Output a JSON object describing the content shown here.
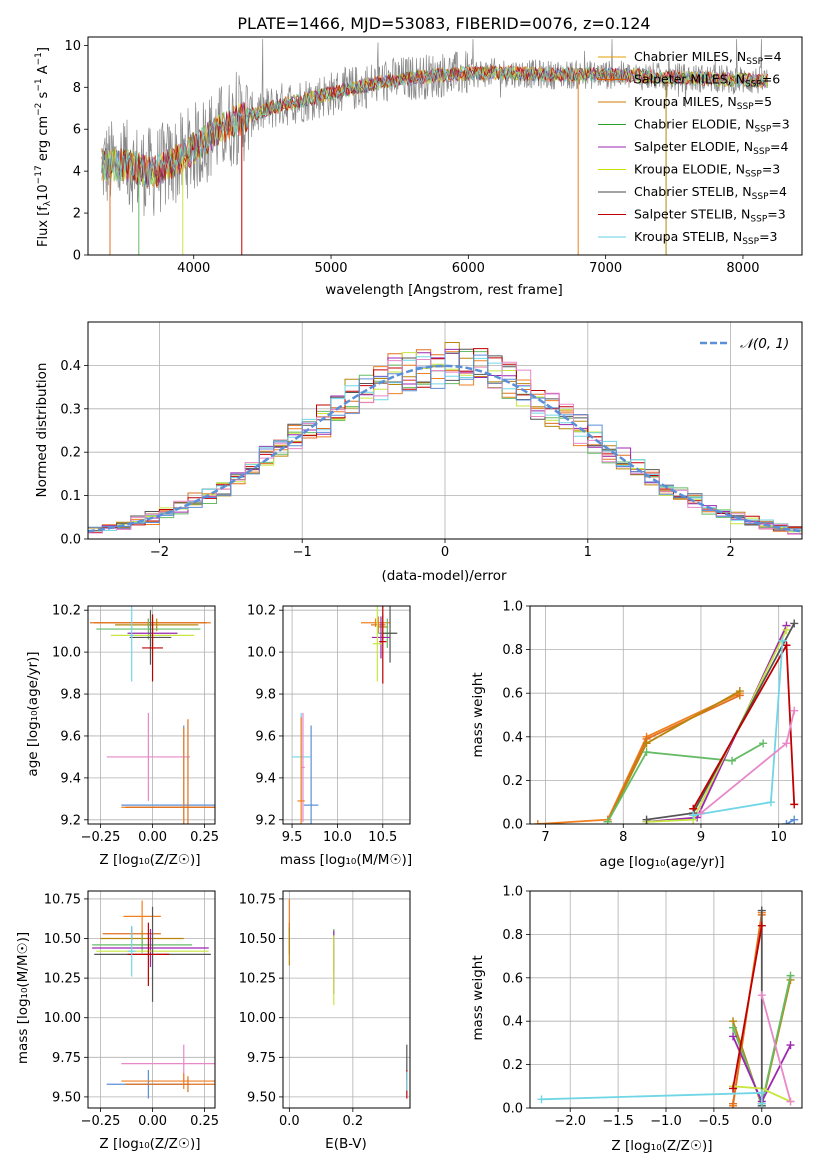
{
  "figure_title": "PLATE=1466, MJD=53083, FIBERID=0076, z=0.124",
  "legend_entries": [
    {
      "label": "Chabrier MILES, N",
      "sub": "SSP",
      "suffix": "=4",
      "color": "#e69f00"
    },
    {
      "label": "Salpeter MILES, N",
      "sub": "SSP",
      "suffix": "=6",
      "color": "#d55e00"
    },
    {
      "label": "Kroupa MILES, N",
      "sub": "SSP",
      "suffix": "=5",
      "color": "#cc7a00"
    },
    {
      "label": "Chabrier ELODIE, N",
      "sub": "SSP",
      "suffix": "=3",
      "color": "#2ca02c"
    },
    {
      "label": "Salpeter ELODIE, N",
      "sub": "SSP",
      "suffix": "=4",
      "color": "#9c27b0"
    },
    {
      "label": "Kroupa ELODIE, N",
      "sub": "SSP",
      "suffix": "=3",
      "color": "#c8e000"
    },
    {
      "label": "Chabrier STELIB, N",
      "sub": "SSP",
      "suffix": "=4",
      "color": "#444444"
    },
    {
      "label": "Salpeter STELIB, N",
      "sub": "SSP",
      "suffix": "=3",
      "color": "#c00000"
    },
    {
      "label": "Kroupa STELIB, N",
      "sub": "SSP",
      "suffix": "=3",
      "color": "#66d0e6"
    }
  ],
  "series_colors": [
    "#f08020",
    "#e07020",
    "#b8860b",
    "#66bb66",
    "#9c27b0",
    "#c8e640",
    "#555555",
    "#c00000",
    "#70d6e6",
    "#e888c8",
    "#5b8fd8"
  ],
  "chart_data": [
    {
      "type": "line",
      "xlabel": "wavelength [Angstrom, rest frame]",
      "ylabel": "Flux [f_λ 10^-17 erg cm^-2 s^-1 A^-1]",
      "ylabel_parts": {
        "main": "Flux [f",
        "lambda": "λ",
        "mid": "10",
        "e1": "−17",
        "unit1": " erg cm",
        "e2": "−2",
        "unit2": " s",
        "e3": "−1",
        "unit3": " A",
        "e4": "−1",
        "end": "]"
      },
      "xlim": [
        3230,
        8430
      ],
      "ylim": [
        0,
        10.4
      ],
      "xticks": [
        4000,
        5000,
        6000,
        7000,
        8000
      ],
      "yticks": [
        0,
        2,
        4,
        6,
        8,
        10
      ],
      "continuum": [
        [
          3330,
          4.3
        ],
        [
          3500,
          4.3
        ],
        [
          3700,
          3.9
        ],
        [
          3900,
          4.6
        ],
        [
          4100,
          5.6
        ],
        [
          4300,
          6.4
        ],
        [
          4600,
          7.1
        ],
        [
          5000,
          7.7
        ],
        [
          5400,
          8.3
        ],
        [
          5800,
          8.6
        ],
        [
          6200,
          8.7
        ],
        [
          6600,
          8.6
        ],
        [
          7000,
          8.6
        ],
        [
          7400,
          8.5
        ],
        [
          7800,
          8.4
        ],
        [
          8150,
          8.3
        ]
      ],
      "noisy_range": [
        3330,
        8180
      ],
      "drop_lines": [
        3390,
        3600,
        3920,
        4350,
        6800,
        7440
      ]
    },
    {
      "type": "histogram",
      "xlabel": "(data-model)/error",
      "ylabel": "Normed distribution",
      "xlim": [
        -2.5,
        2.5
      ],
      "ylim": [
        0,
        0.5
      ],
      "xticks": [
        -2,
        -1,
        0,
        1,
        2
      ],
      "yticks": [
        0.0,
        0.1,
        0.2,
        0.3,
        0.4
      ],
      "bin_width": 0.1,
      "legend": "𝒩(0, 1)",
      "gaussian": {
        "mu": 0,
        "sigma": 1
      }
    },
    {
      "type": "scatter",
      "xlabel": "Z [log₁₀(Z/Z☉)]",
      "ylabel": "age  [log₁₀(age/yr)]",
      "xlim": [
        -0.31,
        0.3
      ],
      "ylim": [
        9.18,
        10.22
      ],
      "xticks": [
        -0.25,
        0.0,
        0.25
      ],
      "yticks": [
        9.2,
        9.4,
        9.6,
        9.8,
        10.0,
        10.2
      ],
      "points": [
        {
          "x": 0.0,
          "y": 10.14,
          "xe": 0.28,
          "ye": 0.02
        },
        {
          "x": -0.02,
          "y": 10.14,
          "xe": 0.28,
          "ye": 0.02
        },
        {
          "x": 0.02,
          "y": 10.13,
          "xe": 0.2,
          "ye": 0.03
        },
        {
          "x": -0.02,
          "y": 10.11,
          "xe": 0.25,
          "ye": 0.05
        },
        {
          "x": 0.0,
          "y": 10.09,
          "xe": 0.12,
          "ye": 0.06
        },
        {
          "x": 0.0,
          "y": 10.08,
          "xe": 0.2,
          "ye": 0.1
        },
        {
          "x": -0.01,
          "y": 10.07,
          "xe": 0.1,
          "ye": 0.13
        },
        {
          "x": 0.0,
          "y": 10.02,
          "xe": 0.05,
          "ye": 0.16
        },
        {
          "x": -0.1,
          "y": 10.08,
          "xe": 0.01,
          "ye": 0.22
        },
        {
          "x": -0.02,
          "y": 9.5,
          "xe": 0.2,
          "ye": 0.21
        },
        {
          "x": 0.15,
          "y": 9.27,
          "xe": 0.3,
          "ye": 0.38
        },
        {
          "x": 0.15,
          "y": 9.26,
          "xe": 0.3,
          "ye": 0.38
        },
        {
          "x": 0.17,
          "y": 9.26,
          "xe": 0.3,
          "ye": 0.42
        }
      ]
    },
    {
      "type": "scatter",
      "xlabel": "mass [log₁₀(M/M☉)]",
      "ylabel": "",
      "xlim": [
        9.4,
        10.8
      ],
      "ylim": [
        9.18,
        10.22
      ],
      "xticks": [
        9.5,
        10.0,
        10.5
      ],
      "yticks": [
        9.2,
        9.4,
        9.6,
        9.8,
        10.0,
        10.2
      ],
      "points": [
        {
          "x": 10.42,
          "y": 10.14,
          "xe": 0.16,
          "ye": 0.02
        },
        {
          "x": 10.45,
          "y": 10.13,
          "xe": 0.08,
          "ye": 0.04
        },
        {
          "x": 10.5,
          "y": 10.12,
          "xe": 0.06,
          "ye": 0.06
        },
        {
          "x": 10.55,
          "y": 10.09,
          "xe": 0.1,
          "ye": 0.07
        },
        {
          "x": 10.48,
          "y": 10.07,
          "xe": 0.1,
          "ye": 0.1
        },
        {
          "x": 10.44,
          "y": 10.04,
          "xe": 0.05,
          "ye": 0.18
        },
        {
          "x": 10.58,
          "y": 10.09,
          "xe": 0.08,
          "ye": 0.14
        },
        {
          "x": 10.5,
          "y": 10.05,
          "xe": 0.04,
          "ye": 0.2
        },
        {
          "x": 9.6,
          "y": 9.5,
          "xe": 0.1,
          "ye": 0.21
        },
        {
          "x": 9.62,
          "y": 9.45,
          "xe": 0.02,
          "ye": 0.26
        },
        {
          "x": 9.71,
          "y": 9.27,
          "xe": 0.08,
          "ye": 0.38
        },
        {
          "x": 9.6,
          "y": 9.29,
          "xe": 0.04,
          "ye": 0.4
        }
      ]
    },
    {
      "type": "line",
      "xlabel": "age  [log₁₀(age/yr)]",
      "ylabel": "mass weight",
      "xlim": [
        6.8,
        10.3
      ],
      "ylim": [
        0,
        1.0
      ],
      "xticks": [
        7,
        8,
        9,
        10
      ],
      "yticks": [
        0.0,
        0.2,
        0.4,
        0.6,
        0.8,
        1.0
      ],
      "series": [
        {
          "x": [
            6.9,
            7.8,
            8.3,
            9.5
          ],
          "y": [
            0.0,
            0.02,
            0.4,
            0.6
          ]
        },
        {
          "x": [
            7.8,
            8.3,
            9.5
          ],
          "y": [
            0.01,
            0.39,
            0.59
          ]
        },
        {
          "x": [
            7.8,
            8.3,
            9.5
          ],
          "y": [
            0.01,
            0.37,
            0.61
          ]
        },
        {
          "x": [
            7.8,
            8.3,
            9.4,
            9.8
          ],
          "y": [
            0.01,
            0.33,
            0.29,
            0.37
          ]
        },
        {
          "x": [
            8.3,
            8.95,
            10.1
          ],
          "y": [
            0.01,
            0.03,
            0.91
          ]
        },
        {
          "x": [
            8.3,
            8.9,
            10.1
          ],
          "y": [
            0.01,
            0.02,
            0.89
          ]
        },
        {
          "x": [
            8.3,
            8.9,
            10.2
          ],
          "y": [
            0.02,
            0.05,
            0.92
          ]
        },
        {
          "x": [
            8.9,
            10.1,
            10.2
          ],
          "y": [
            0.07,
            0.82,
            0.09
          ]
        },
        {
          "x": [
            8.9,
            9.9,
            10.05
          ],
          "y": [
            0.04,
            0.1,
            0.84
          ]
        },
        {
          "x": [
            9.0,
            10.1,
            10.2
          ],
          "y": [
            0.05,
            0.37,
            0.52
          ]
        },
        {
          "x": [
            10.1,
            10.2
          ],
          "y": [
            0.0,
            0.02
          ]
        }
      ]
    },
    {
      "type": "scatter",
      "xlabel": "Z [log₁₀(Z/Z☉)]",
      "ylabel": "mass [log₁₀(M/M☉)]",
      "xlim": [
        -0.31,
        0.3
      ],
      "ylim": [
        9.43,
        10.8
      ],
      "xticks": [
        -0.25,
        0.0,
        0.25
      ],
      "yticks": [
        9.5,
        9.75,
        10.0,
        10.25,
        10.5,
        10.75
      ],
      "points": [
        {
          "x": -0.05,
          "y": 10.64,
          "xe": 0.09,
          "ye": 0.1
        },
        {
          "x": -0.1,
          "y": 10.53,
          "xe": 0.14,
          "ye": 0.04
        },
        {
          "x": -0.05,
          "y": 10.5,
          "xe": 0.2,
          "ye": 0.05
        },
        {
          "x": -0.05,
          "y": 10.46,
          "xe": 0.24,
          "ye": 0.05
        },
        {
          "x": -0.01,
          "y": 10.44,
          "xe": 0.28,
          "ye": 0.12
        },
        {
          "x": 0.0,
          "y": 10.42,
          "xe": 0.27,
          "ye": 0.08
        },
        {
          "x": 0.0,
          "y": 10.4,
          "xe": 0.28,
          "ye": 0.3
        },
        {
          "x": -0.02,
          "y": 10.4,
          "xe": 0.1,
          "ye": 0.2
        },
        {
          "x": -0.1,
          "y": 10.42,
          "xe": 0.02,
          "ye": 0.16
        },
        {
          "x": 0.15,
          "y": 9.71,
          "xe": 0.3,
          "ye": 0.12
        },
        {
          "x": -0.02,
          "y": 9.58,
          "xe": 0.2,
          "ye": 0.09
        },
        {
          "x": 0.15,
          "y": 9.6,
          "xe": 0.3,
          "ye": 0.05
        },
        {
          "x": 0.17,
          "y": 9.58,
          "xe": 0.3,
          "ye": 0.05
        }
      ]
    },
    {
      "type": "scatter",
      "xlabel": "E(B-V)",
      "ylabel": "",
      "xlim": [
        -0.02,
        0.38
      ],
      "ylim": [
        9.43,
        10.8
      ],
      "xticks": [
        0.0,
        0.2
      ],
      "yticks": [
        9.5,
        9.75,
        10.0,
        10.25,
        10.5,
        10.75
      ],
      "points": [
        {
          "x": 0.0,
          "y": 10.65,
          "xe": 0,
          "ye": 0.1
        },
        {
          "x": 0.0,
          "y": 10.5,
          "xe": 0,
          "ye": 0.1
        },
        {
          "x": 0.0,
          "y": 10.45,
          "xe": 0,
          "ye": 0.12
        },
        {
          "x": 0.14,
          "y": 10.42,
          "xe": 0,
          "ye": 0.14
        },
        {
          "x": 0.14,
          "y": 10.35,
          "xe": 0,
          "ye": 0.2
        },
        {
          "x": 0.14,
          "y": 10.3,
          "xe": 0,
          "ye": 0.22
        },
        {
          "x": 0.37,
          "y": 9.72,
          "xe": 0,
          "ye": 0.11
        },
        {
          "x": 0.37,
          "y": 9.58,
          "xe": 0,
          "ye": 0.09
        },
        {
          "x": 0.37,
          "y": 9.6,
          "xe": 0,
          "ye": 0.06
        }
      ]
    },
    {
      "type": "line",
      "xlabel": "Z [log₁₀(Z/Z☉)]",
      "ylabel": "mass weight",
      "xlim": [
        -2.42,
        0.42
      ],
      "ylim": [
        0,
        1.0
      ],
      "xticks": [
        -2.0,
        -1.5,
        -1.0,
        -0.5,
        0.0
      ],
      "yticks": [
        0.0,
        0.2,
        0.4,
        0.6,
        0.8,
        1.0
      ],
      "series": [
        {
          "x": [
            -0.3,
            0.0,
            -0.3
          ],
          "y": [
            0.01,
            0.9,
            0.01
          ]
        },
        {
          "x": [
            -0.3,
            0.0
          ],
          "y": [
            0.02,
            0.89
          ]
        },
        {
          "x": [
            -0.3,
            0.0,
            0.3
          ],
          "y": [
            0.4,
            0.01,
            0.59
          ]
        },
        {
          "x": [
            -0.3,
            0.0,
            0.3
          ],
          "y": [
            0.37,
            0.02,
            0.61
          ]
        },
        {
          "x": [
            -0.3,
            0.0,
            0.3
          ],
          "y": [
            0.33,
            0.03,
            0.29
          ]
        },
        {
          "x": [
            -0.3,
            0.0,
            0.3
          ],
          "y": [
            0.1,
            0.09,
            0.03
          ]
        },
        {
          "x": [
            0.0,
            0.0
          ],
          "y": [
            0.01,
            0.91
          ]
        },
        {
          "x": [
            -0.3,
            0.0
          ],
          "y": [
            0.09,
            0.84
          ]
        },
        {
          "x": [
            -2.3,
            0.0,
            0.0
          ],
          "y": [
            0.04,
            0.07,
            0.02
          ]
        },
        {
          "x": [
            0.0,
            0.3
          ],
          "y": [
            0.52,
            0.03
          ]
        }
      ]
    }
  ]
}
